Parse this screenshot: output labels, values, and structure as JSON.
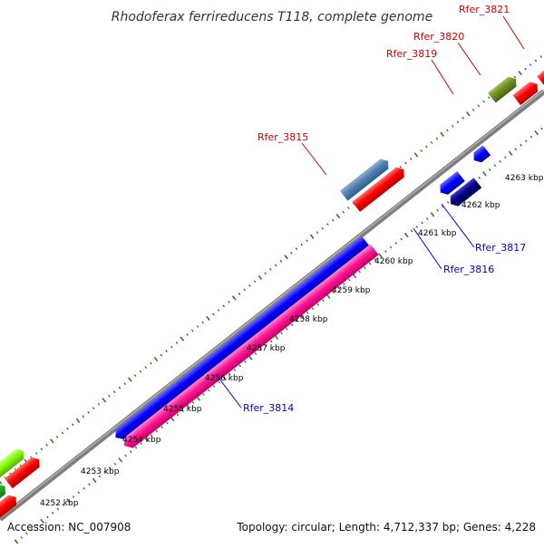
{
  "title": "Rhodoferax ferrireducens T118, complete genome",
  "footer": {
    "accession": "Accession: NC_007908",
    "summary": "Topology: circular; Length: 4,712,337 bp; Genes: 4,228"
  },
  "ticks": [
    "4252 kbp",
    "4253 kbp",
    "4254 kbp",
    "4255 kbp",
    "4256 kbp",
    "4257 kbp",
    "4258 kbp",
    "4259 kbp",
    "4260 kbp",
    "4261 kbp",
    "4262 kbp",
    "4263 kbp"
  ],
  "genes": [
    {
      "label": "Rfer_3814",
      "color": "#0000cc",
      "strand": "reverse"
    },
    {
      "label": "Rfer_3815",
      "color": "#cc0000",
      "strand": "forward"
    },
    {
      "label": "Rfer_3816",
      "color": "#0000cc",
      "strand": "reverse"
    },
    {
      "label": "Rfer_3817",
      "color": "#0000cc",
      "strand": "reverse"
    },
    {
      "label": "Rfer_3819",
      "color": "#cc0000",
      "strand": "forward"
    },
    {
      "label": "Rfer_3820",
      "color": "#cc0000",
      "strand": "forward"
    },
    {
      "label": "Rfer_3821",
      "color": "#cc0000",
      "strand": "forward"
    }
  ],
  "colors": {
    "backbone": "#7f7f7f",
    "tick": "#2e7d1e",
    "forward_cds": "#ff0000",
    "reverse_cds": "#0000ff",
    "rna": "#ff1493",
    "dark_cds": "#000080",
    "steel": "#4f81b0",
    "olive": "#6b8e23",
    "lime": "#7fff00"
  }
}
